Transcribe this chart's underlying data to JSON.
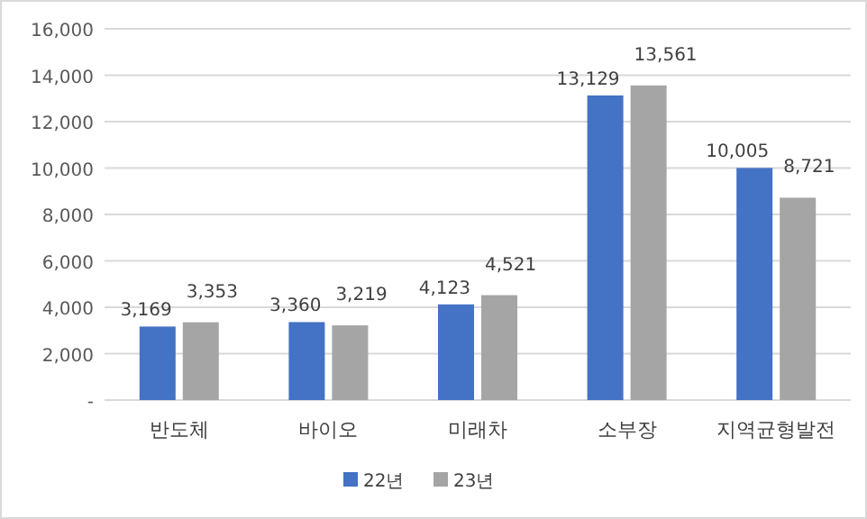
{
  "chart_data": {
    "type": "bar",
    "categories": [
      "반도체",
      "바이오",
      "미래차",
      "소부장",
      "지역균형발전"
    ],
    "series": [
      {
        "name": "22년",
        "color": "#4472c4",
        "values": [
          3169,
          3360,
          4123,
          13129,
          10005
        ],
        "value_labels": [
          "3,169",
          "3,360",
          "4,123",
          "13,129",
          "10,005"
        ]
      },
      {
        "name": "23년",
        "color": "#a5a5a5",
        "values": [
          3353,
          3219,
          4521,
          13561,
          8721
        ],
        "value_labels": [
          "3,353",
          "3,219",
          "4,521",
          "13,561",
          "8,721"
        ]
      }
    ],
    "ylim": [
      0,
      16000
    ],
    "yticks": [
      {
        "value": 0,
        "label": "-"
      },
      {
        "value": 2000,
        "label": "2,000"
      },
      {
        "value": 4000,
        "label": "4,000"
      },
      {
        "value": 6000,
        "label": "6,000"
      },
      {
        "value": 8000,
        "label": "8,000"
      },
      {
        "value": 10000,
        "label": "10,000"
      },
      {
        "value": 12000,
        "label": "12,000"
      },
      {
        "value": 14000,
        "label": "14,000"
      },
      {
        "value": 16000,
        "label": "16,000"
      }
    ],
    "grid": "y",
    "legend": "bottom"
  }
}
